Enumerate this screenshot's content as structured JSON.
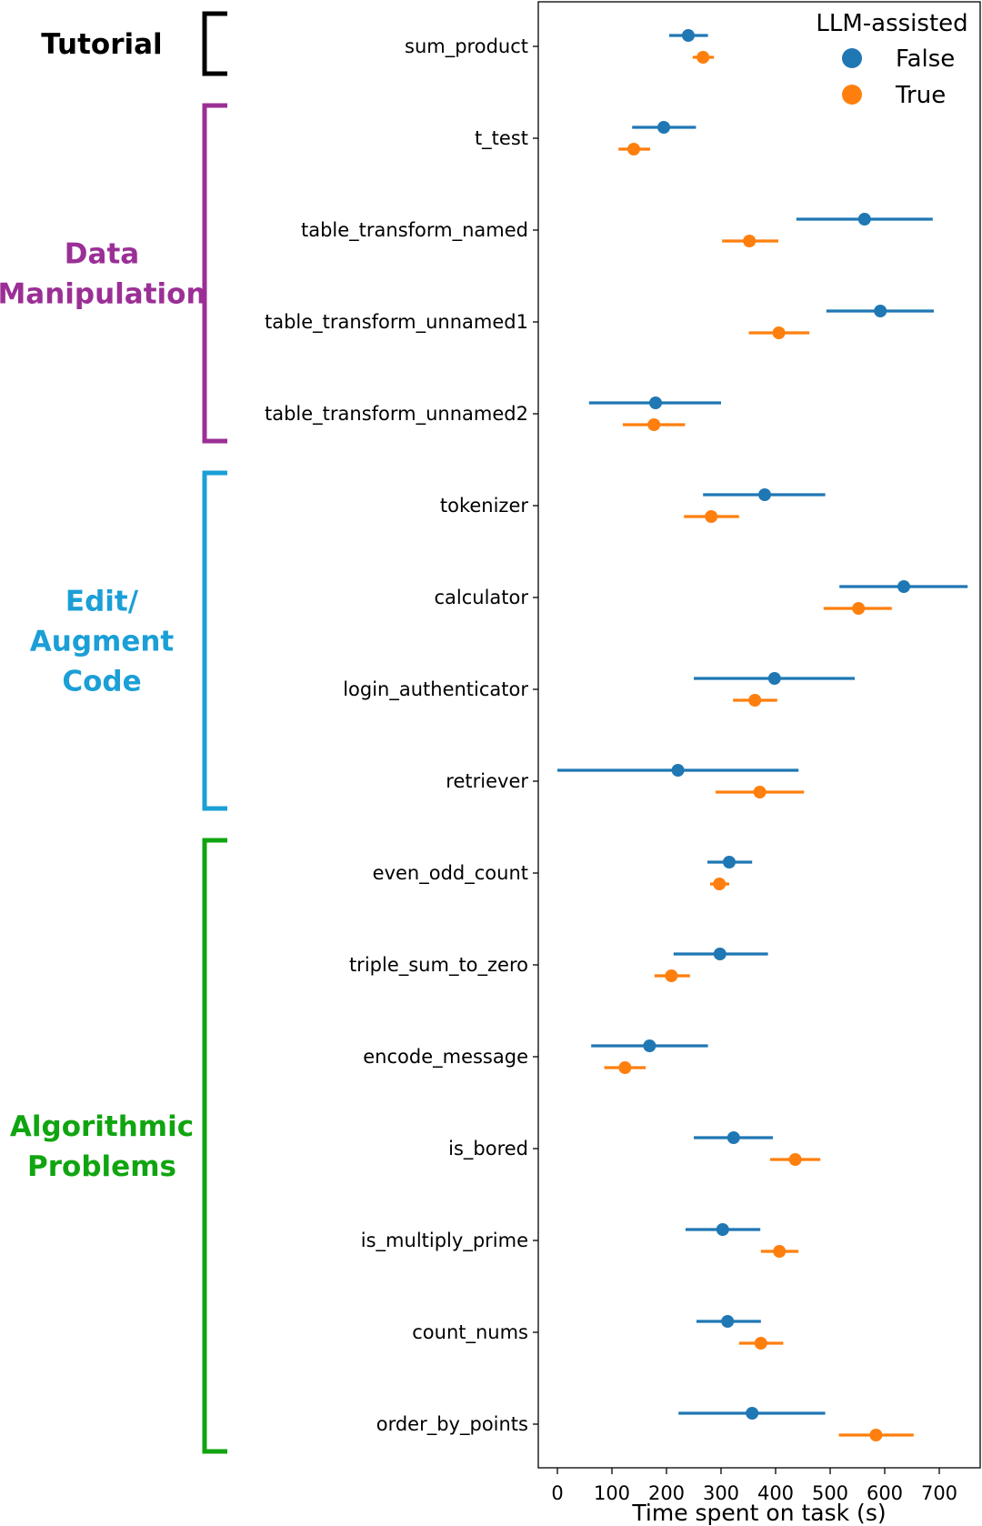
{
  "chart_data": {
    "type": "scatter",
    "orientation": "horizontal",
    "categories": [
      "sum_product",
      "t_test",
      "table_transform_named",
      "table_transform_unnamed1",
      "table_transform_unnamed2",
      "tokenizer",
      "calculator",
      "login_authenticator",
      "retriever",
      "even_odd_count",
      "triple_sum_to_zero",
      "encode_message",
      "is_bored",
      "is_multiply_prime",
      "count_nums",
      "order_by_points"
    ],
    "series": [
      {
        "name": "False",
        "color": "#1f77b4",
        "values": [
          240,
          195,
          563,
          592,
          180,
          380,
          635,
          398,
          221,
          315,
          298,
          169,
          323,
          303,
          312,
          357
        ],
        "ci_low": [
          205,
          137,
          438,
          493,
          58,
          267,
          517,
          250,
          0,
          275,
          213,
          62,
          250,
          235,
          255,
          222
        ],
        "ci_high": [
          276,
          254,
          688,
          690,
          300,
          491,
          752,
          545,
          442,
          357,
          386,
          276,
          395,
          372,
          373,
          491
        ]
      },
      {
        "name": "True",
        "color": "#ff7f0e",
        "values": [
          267,
          140,
          352,
          406,
          177,
          282,
          552,
          362,
          371,
          297,
          209,
          124,
          436,
          407,
          373,
          584
        ],
        "ci_low": [
          248,
          112,
          302,
          351,
          120,
          232,
          488,
          322,
          290,
          280,
          178,
          86,
          390,
          373,
          333,
          516
        ],
        "ci_high": [
          287,
          170,
          405,
          462,
          234,
          333,
          613,
          403,
          452,
          315,
          243,
          162,
          482,
          442,
          414,
          653
        ]
      }
    ],
    "xlabel": "Time spent on task (s)",
    "ylabel": "",
    "xlim": [
      -35,
      775
    ],
    "xticks": [
      0,
      100,
      200,
      300,
      400,
      500,
      600,
      700
    ],
    "grid": false,
    "legend": {
      "title": "LLM-assisted",
      "placement": "top-right"
    },
    "groups": [
      {
        "label_lines": [
          "Tutorial"
        ],
        "color": "#000000",
        "first": 0,
        "last": 0
      },
      {
        "label_lines": [
          "Data",
          "Manipulation"
        ],
        "color": "#9b2f96",
        "first": 1,
        "last": 4
      },
      {
        "label_lines": [
          "Edit/",
          "Augment",
          "Code"
        ],
        "color": "#1b9fd6",
        "first": 5,
        "last": 8
      },
      {
        "label_lines": [
          "Algorithmic",
          "Problems"
        ],
        "color": "#10a510",
        "first": 9,
        "last": 15
      }
    ]
  }
}
